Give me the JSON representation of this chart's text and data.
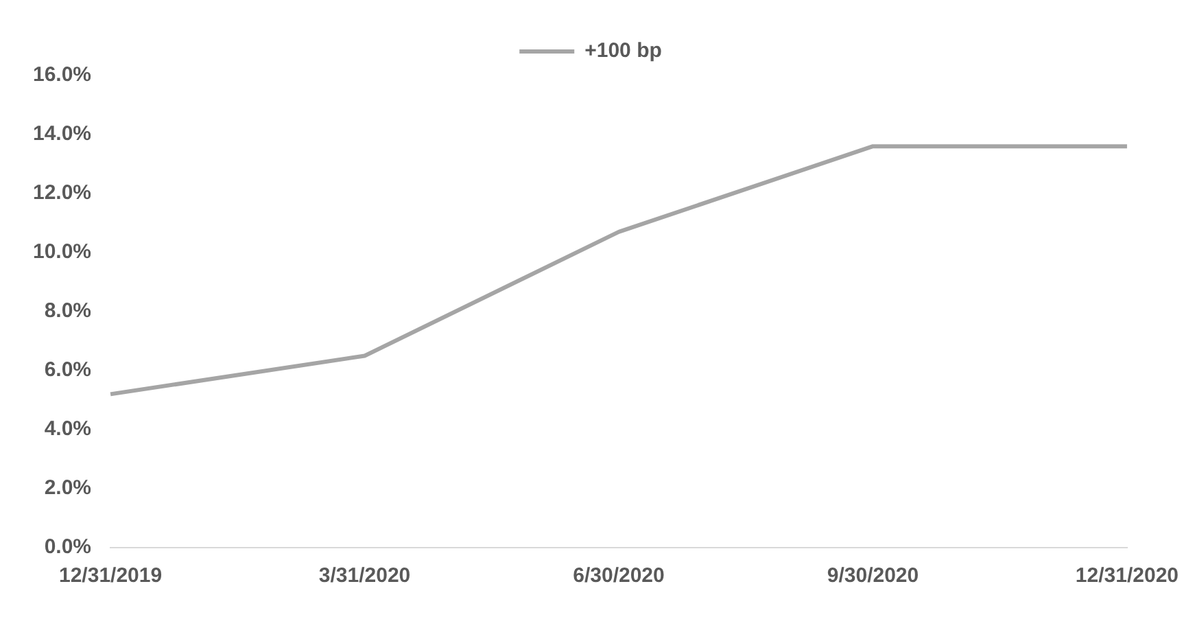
{
  "chart_data": {
    "type": "line",
    "categories": [
      "12/31/2019",
      "3/31/2020",
      "6/30/2020",
      "9/30/2020",
      "12/31/2020"
    ],
    "series": [
      {
        "name": "+100 bp",
        "color": "#a5a5a5",
        "values": [
          5.2,
          6.5,
          10.7,
          13.6,
          13.6
        ]
      }
    ],
    "ylim": [
      0,
      16
    ],
    "yticks": [
      {
        "value": 0,
        "label": "0.0%"
      },
      {
        "value": 2,
        "label": "2.0%"
      },
      {
        "value": 4,
        "label": "4.0%"
      },
      {
        "value": 6,
        "label": "6.0%"
      },
      {
        "value": 8,
        "label": "8.0%"
      },
      {
        "value": 10,
        "label": "10.0%"
      },
      {
        "value": 12,
        "label": "12.0%"
      },
      {
        "value": 14,
        "label": "14.0%"
      },
      {
        "value": 16,
        "label": "16.0%"
      }
    ],
    "grid": false,
    "legend": "top",
    "marker": "none",
    "line_style": "solid"
  }
}
